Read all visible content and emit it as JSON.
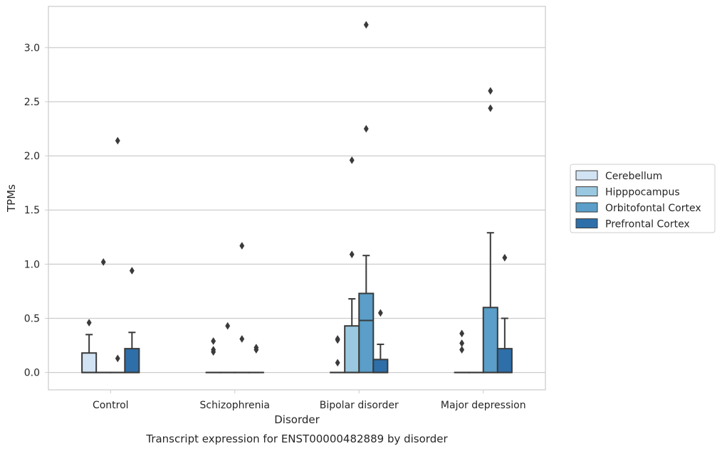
{
  "chart_data": {
    "type": "box",
    "title": "",
    "caption": "Transcript expression for ENST00000482889 by disorder",
    "xlabel": "Disorder",
    "ylabel": "TPMs",
    "ylim": [
      -0.16,
      3.38
    ],
    "yticks": [
      0.0,
      0.5,
      1.0,
      1.5,
      2.0,
      2.5,
      3.0
    ],
    "ytick_labels": [
      "0.0",
      "0.5",
      "1.0",
      "1.5",
      "2.0",
      "2.5",
      "3.0"
    ],
    "grid": "horizontal",
    "legend_position": "right",
    "categories": [
      "Control",
      "Schizophrenia",
      "Bipolar disorder",
      "Major depression"
    ],
    "series": [
      {
        "name": "Cerebellum",
        "color": "#d2e3f3",
        "boxes": [
          {
            "q1": 0.0,
            "median": 0.0,
            "q3": 0.18,
            "whislo": 0.0,
            "whishi": 0.35,
            "fliers": [
              0.46
            ]
          },
          {
            "q1": 0.0,
            "median": 0.0,
            "q3": 0.0,
            "whislo": 0.0,
            "whishi": 0.0,
            "fliers": [
              0.19,
              0.21,
              0.29
            ]
          },
          {
            "q1": 0.0,
            "median": 0.0,
            "q3": 0.0,
            "whislo": 0.0,
            "whishi": 0.0,
            "fliers": [
              0.09,
              0.3,
              0.31
            ]
          },
          {
            "q1": 0.0,
            "median": 0.0,
            "q3": 0.0,
            "whislo": 0.0,
            "whishi": 0.0,
            "fliers": [
              0.21,
              0.27,
              0.36
            ]
          }
        ]
      },
      {
        "name": "Hipppocampus",
        "color": "#9ac8e0",
        "boxes": [
          {
            "q1": 0.0,
            "median": 0.0,
            "q3": 0.0,
            "whislo": 0.0,
            "whishi": 0.0,
            "fliers": [
              1.02
            ]
          },
          {
            "q1": 0.0,
            "median": 0.0,
            "q3": 0.0,
            "whislo": 0.0,
            "whishi": 0.0,
            "fliers": [
              0.43
            ]
          },
          {
            "q1": 0.0,
            "median": 0.0,
            "q3": 0.43,
            "whislo": 0.0,
            "whishi": 0.68,
            "fliers": [
              1.09,
              1.96
            ]
          },
          {
            "q1": 0.0,
            "median": 0.0,
            "q3": 0.0,
            "whislo": 0.0,
            "whishi": 0.0,
            "fliers": []
          }
        ]
      },
      {
        "name": "Orbitofontal Cortex",
        "color": "#5a9ec9",
        "boxes": [
          {
            "q1": 0.0,
            "median": 0.0,
            "q3": 0.0,
            "whislo": 0.0,
            "whishi": 0.0,
            "fliers": [
              0.13,
              2.14
            ]
          },
          {
            "q1": 0.0,
            "median": 0.0,
            "q3": 0.0,
            "whislo": 0.0,
            "whishi": 0.0,
            "fliers": [
              0.31,
              1.17
            ]
          },
          {
            "q1": 0.0,
            "median": 0.48,
            "q3": 0.73,
            "whislo": 0.0,
            "whishi": 1.08,
            "fliers": [
              2.25,
              3.21
            ]
          },
          {
            "q1": 0.0,
            "median": 0.0,
            "q3": 0.6,
            "whislo": 0.0,
            "whishi": 1.29,
            "fliers": [
              2.44,
              2.6
            ]
          }
        ]
      },
      {
        "name": "Prefrontal Cortex",
        "color": "#2e6faa",
        "boxes": [
          {
            "q1": 0.0,
            "median": 0.0,
            "q3": 0.22,
            "whislo": 0.0,
            "whishi": 0.37,
            "fliers": [
              0.94
            ]
          },
          {
            "q1": 0.0,
            "median": 0.0,
            "q3": 0.0,
            "whislo": 0.0,
            "whishi": 0.0,
            "fliers": [
              0.21,
              0.23
            ]
          },
          {
            "q1": 0.0,
            "median": 0.0,
            "q3": 0.12,
            "whislo": 0.0,
            "whishi": 0.26,
            "fliers": [
              0.55
            ]
          },
          {
            "q1": 0.0,
            "median": 0.0,
            "q3": 0.22,
            "whislo": 0.0,
            "whishi": 0.5,
            "fliers": [
              1.06
            ]
          }
        ]
      }
    ]
  }
}
